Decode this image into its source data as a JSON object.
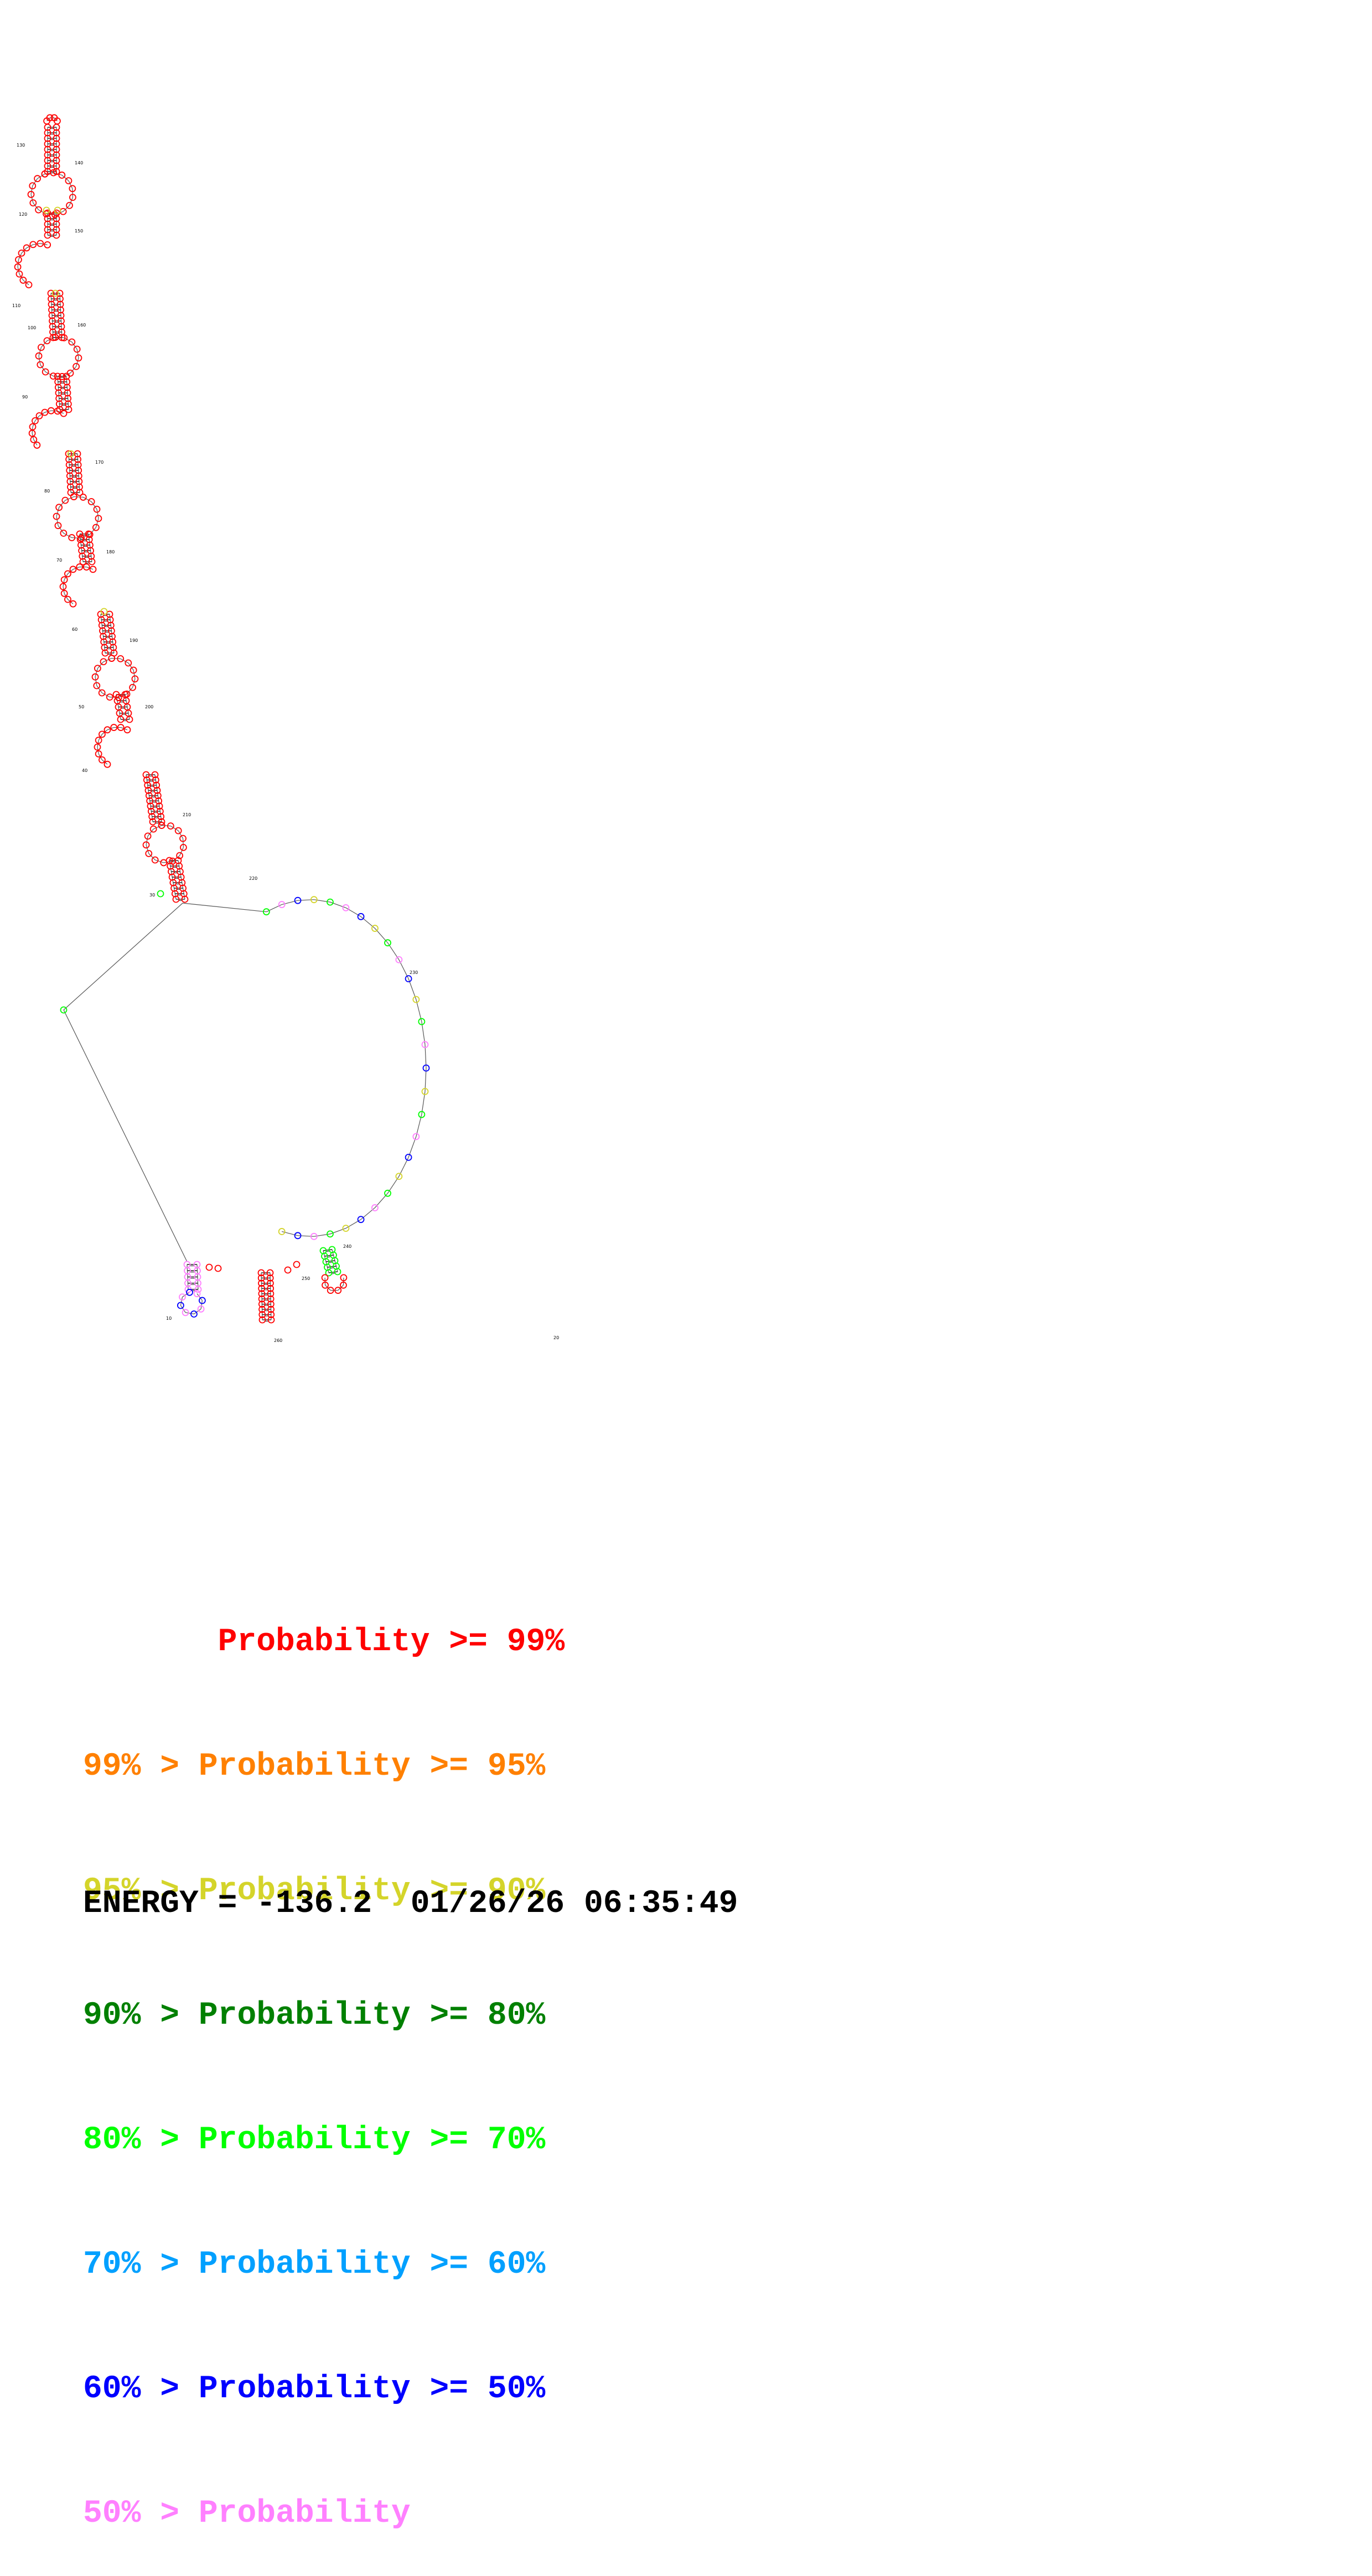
{
  "legend": [
    {
      "text": "       Probability >= 99%",
      "color": "#ff0000"
    },
    {
      "text": "99% > Probability >= 95%",
      "color": "#ff8000"
    },
    {
      "text": "95% > Probability >= 90%",
      "color": "#d4d42a"
    },
    {
      "text": "90% > Probability >= 80%",
      "color": "#008000"
    },
    {
      "text": "80% > Probability >= 70%",
      "color": "#00ff00"
    },
    {
      "text": "70% > Probability >= 60%",
      "color": "#00a0ff"
    },
    {
      "text": "60% > Probability >= 50%",
      "color": "#0000ff"
    },
    {
      "text": "50% > Probability",
      "color": "#ff80ff"
    }
  ],
  "footer": {
    "energy_line": "ENERGY = -136.2  01/26/26 06:35:49"
  },
  "structure": {
    "position_labels": [
      "10",
      "20",
      "30",
      "40",
      "50",
      "60",
      "70",
      "80",
      "90",
      "100",
      "110",
      "120",
      "130",
      "140",
      "150",
      "160",
      "170",
      "180",
      "190",
      "200",
      "210",
      "220",
      "230",
      "240",
      "250",
      "260"
    ],
    "node_probability_colors": {
      "stems": "#ff0000",
      "loop_low": "#ff80ff",
      "loop_mid": "#00ff00",
      "loop_blue": "#0000ff",
      "loop_yellow": "#d4d42a"
    }
  }
}
